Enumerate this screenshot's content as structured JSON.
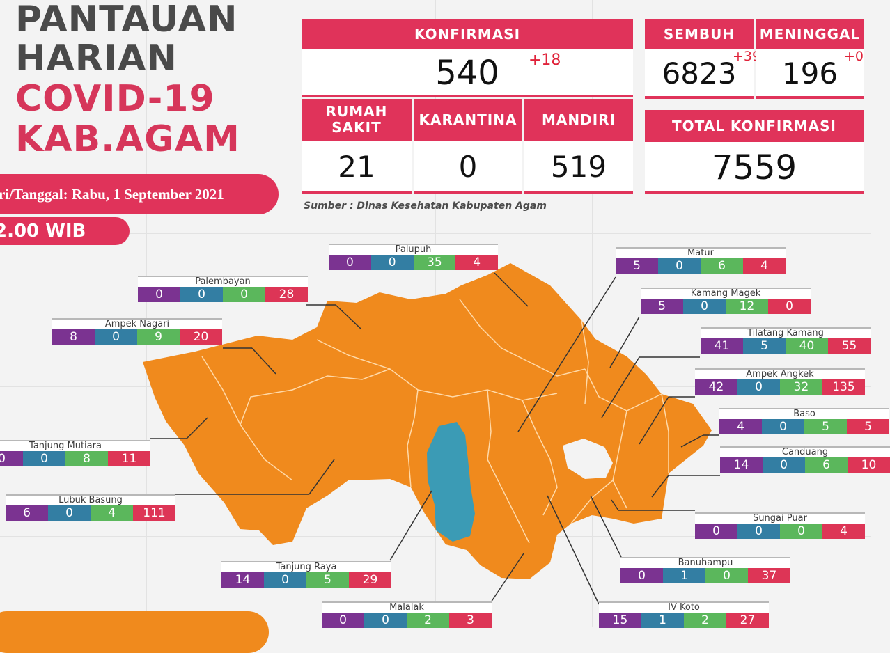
{
  "header": {
    "title_lines": [
      "PANTAUAN",
      "HARIAN",
      "COVID-19",
      "KAB.AGAM"
    ],
    "date": "ri/Tanggal: Rabu, 1 September 2021",
    "time": "2.00 WIB"
  },
  "stats": {
    "konfirmasi": {
      "label": "KONFIRMASI",
      "value": "540",
      "delta": "+18"
    },
    "sembuh": {
      "label": "SEMBUH",
      "value": "6823",
      "delta": "+39"
    },
    "meninggal": {
      "label": "MENINGGAL",
      "value": "196",
      "delta": "+0"
    },
    "rumah_sakit": {
      "label_1": "RUMAH",
      "label_2": "SAKIT",
      "value": "21"
    },
    "karantina": {
      "label": "KARANTINA",
      "value": "0"
    },
    "mandiri": {
      "label": "MANDIRI",
      "value": "519"
    },
    "total": {
      "label": "TOTAL KONFIRMASI",
      "value": "7559"
    }
  },
  "source": "Sumber : Dinas Kesehatan Kabupaten Agam",
  "colors": {
    "accent": "#e0335a",
    "map_fill": "#f08a1d",
    "lake": "#3b9bb5",
    "value_colors": [
      "#7b3391",
      "#337ea3",
      "#5bb75c",
      "#dd3556"
    ]
  },
  "districts": [
    {
      "name": "Palupuh",
      "values": [
        "0",
        "0",
        "35",
        "4"
      ]
    },
    {
      "name": "Palembayan",
      "values": [
        "0",
        "0",
        "0",
        "28"
      ]
    },
    {
      "name": "Ampek Nagari",
      "values": [
        "8",
        "0",
        "9",
        "20"
      ]
    },
    {
      "name": "Tanjung Mutiara",
      "values": [
        "0",
        "0",
        "8",
        "11"
      ]
    },
    {
      "name": "Lubuk Basung",
      "values": [
        "6",
        "0",
        "4",
        "111"
      ]
    },
    {
      "name": "Tanjung Raya",
      "values": [
        "14",
        "0",
        "5",
        "29"
      ]
    },
    {
      "name": "Malalak",
      "values": [
        "0",
        "0",
        "2",
        "3"
      ]
    },
    {
      "name": "Matur",
      "values": [
        "5",
        "0",
        "6",
        "4"
      ]
    },
    {
      "name": "Kamang Magek",
      "values": [
        "5",
        "0",
        "12",
        "0"
      ]
    },
    {
      "name": "Tilatang Kamang",
      "values": [
        "41",
        "5",
        "40",
        "55"
      ]
    },
    {
      "name": "Ampek Angkek",
      "values": [
        "42",
        "0",
        "32",
        "135"
      ]
    },
    {
      "name": "Baso",
      "values": [
        "4",
        "0",
        "5",
        "5"
      ]
    },
    {
      "name": "Canduang",
      "values": [
        "14",
        "0",
        "6",
        "10"
      ]
    },
    {
      "name": "Sungai Puar",
      "values": [
        "0",
        "0",
        "0",
        "4"
      ]
    },
    {
      "name": "Banuhampu",
      "values": [
        "0",
        "1",
        "0",
        "37"
      ]
    },
    {
      "name": "IV Koto",
      "values": [
        "15",
        "1",
        "2",
        "27"
      ]
    }
  ]
}
